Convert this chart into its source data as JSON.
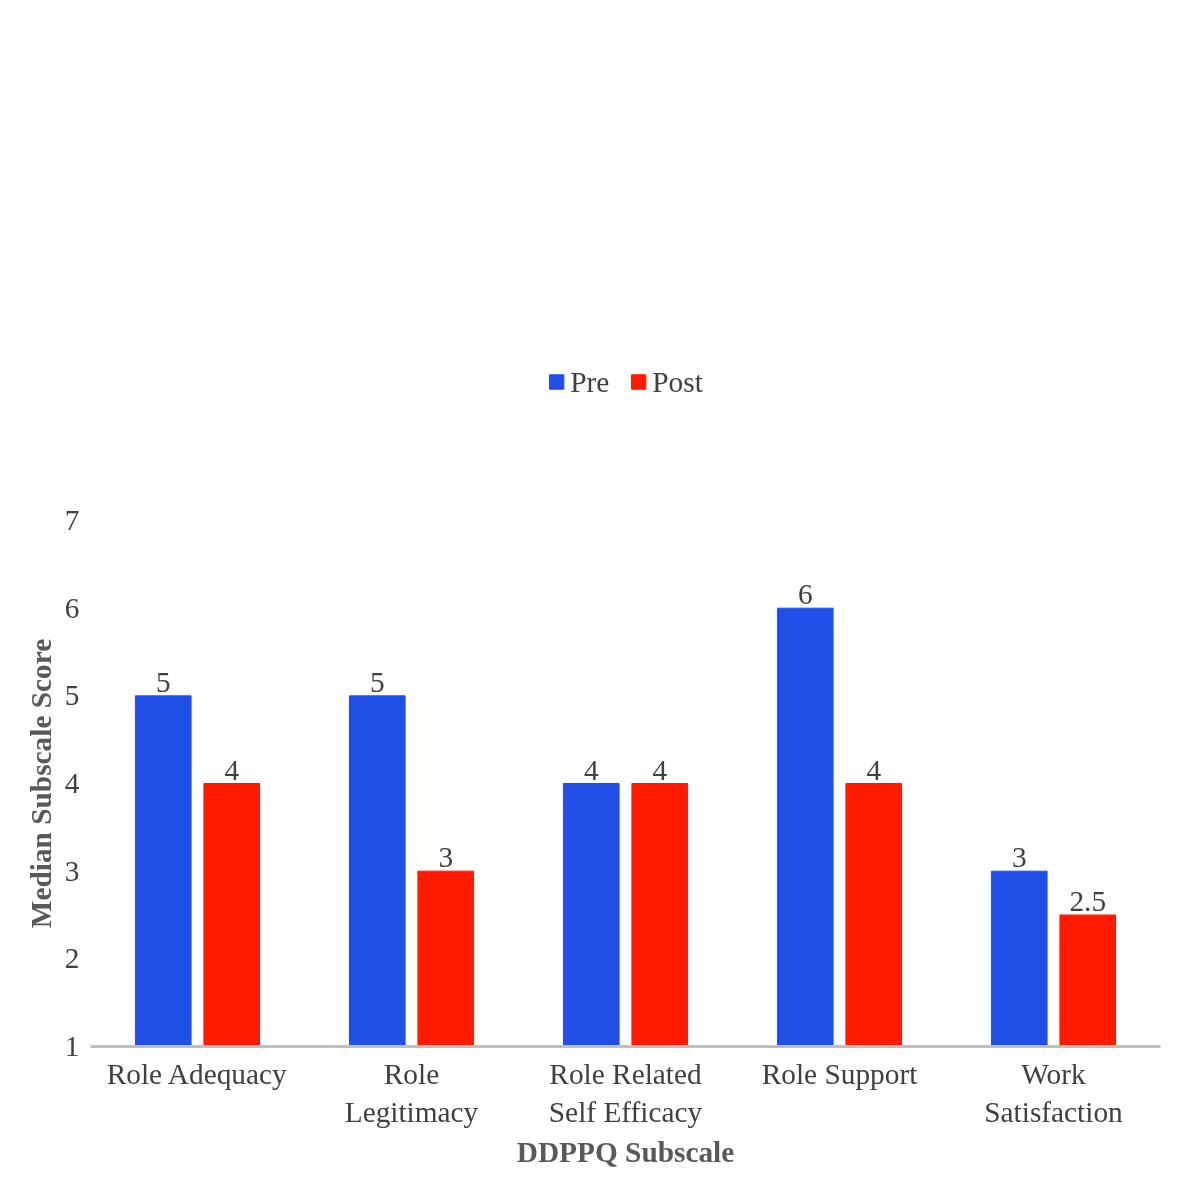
{
  "chart_data": {
    "type": "bar",
    "xlabel": "DDPPQ Subscale",
    "ylabel": "Median Subscale Score",
    "categories": [
      "Role Adequacy",
      "Role\nLegitimacy",
      "Role Related\nSelf Efficacy",
      "Role Support",
      "Work\nSatisfaction"
    ],
    "series": [
      {
        "name": "Pre",
        "color": "#1f4fe6",
        "values": [
          5,
          5,
          4,
          6,
          3
        ]
      },
      {
        "name": "Post",
        "color": "#ff1a00",
        "values": [
          4,
          3,
          4,
          4,
          2.5
        ]
      }
    ],
    "ylim": [
      1,
      7
    ],
    "yticks": [
      1,
      2,
      3,
      4,
      5,
      6,
      7
    ],
    "grid": false,
    "legend": "top",
    "data_labels": true
  }
}
